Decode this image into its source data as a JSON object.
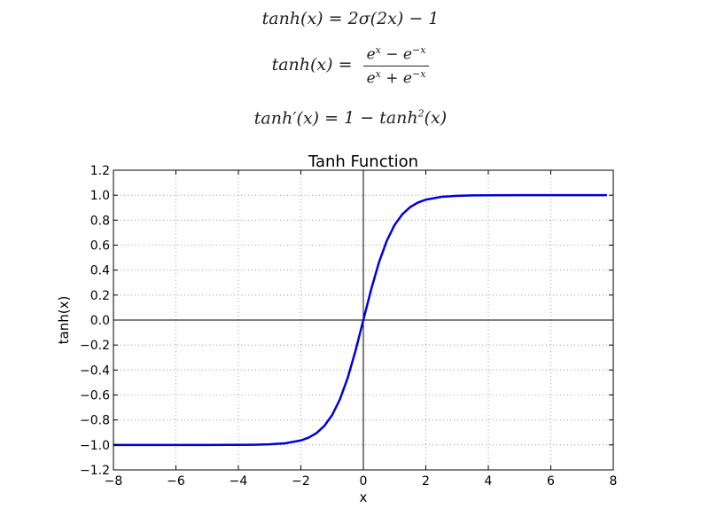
{
  "formulas": {
    "f1": {
      "lhs": "tanh(x)",
      "rhs": "2σ(2x) − 1"
    },
    "f2": {
      "lhs": "tanh(x)",
      "num_a": "e",
      "num_a_sup": "x",
      "num_b": "e",
      "num_b_sup": "−x",
      "num_op": "−",
      "den_a": "e",
      "den_a_sup": "x",
      "den_b": "e",
      "den_b_sup": "−x",
      "den_op": "+"
    },
    "f3": {
      "lhs": "tanh′(x)",
      "rhs_a": "1 − tanh",
      "rhs_sup": "2",
      "rhs_b": "(x)"
    }
  },
  "chart_data": {
    "type": "line",
    "title": "Tanh Function",
    "xlabel": "x",
    "ylabel": "tanh(x)",
    "xlim": [
      -8,
      8
    ],
    "ylim": [
      -1.2,
      1.2
    ],
    "xticks": [
      -8,
      -6,
      -4,
      -2,
      0,
      2,
      4,
      6,
      8
    ],
    "yticks": [
      -1.2,
      -1.0,
      -0.8,
      -0.6,
      -0.4,
      -0.2,
      0.0,
      0.2,
      0.4,
      0.6,
      0.8,
      1.0,
      1.2
    ],
    "grid": true,
    "series": [
      {
        "color": "#0000dd",
        "x": [
          -8,
          -7,
          -6,
          -5,
          -4,
          -3.5,
          -3,
          -2.5,
          -2,
          -1.75,
          -1.5,
          -1.25,
          -1,
          -0.75,
          -0.5,
          -0.25,
          0,
          0.25,
          0.5,
          0.75,
          1,
          1.25,
          1.5,
          1.75,
          2,
          2.5,
          3,
          3.5,
          4,
          5,
          6,
          7,
          7.8
        ],
        "y": [
          -1.0,
          -1.0,
          -1.0,
          -0.9999,
          -0.9993,
          -0.9982,
          -0.9951,
          -0.9866,
          -0.964,
          -0.9414,
          -0.9051,
          -0.8483,
          -0.7616,
          -0.6351,
          -0.4621,
          -0.2449,
          0.0,
          0.2449,
          0.4621,
          0.6351,
          0.7616,
          0.8483,
          0.9051,
          0.9414,
          0.964,
          0.9866,
          0.9951,
          0.9982,
          0.9993,
          0.9999,
          1.0,
          1.0,
          1.0
        ]
      }
    ]
  }
}
